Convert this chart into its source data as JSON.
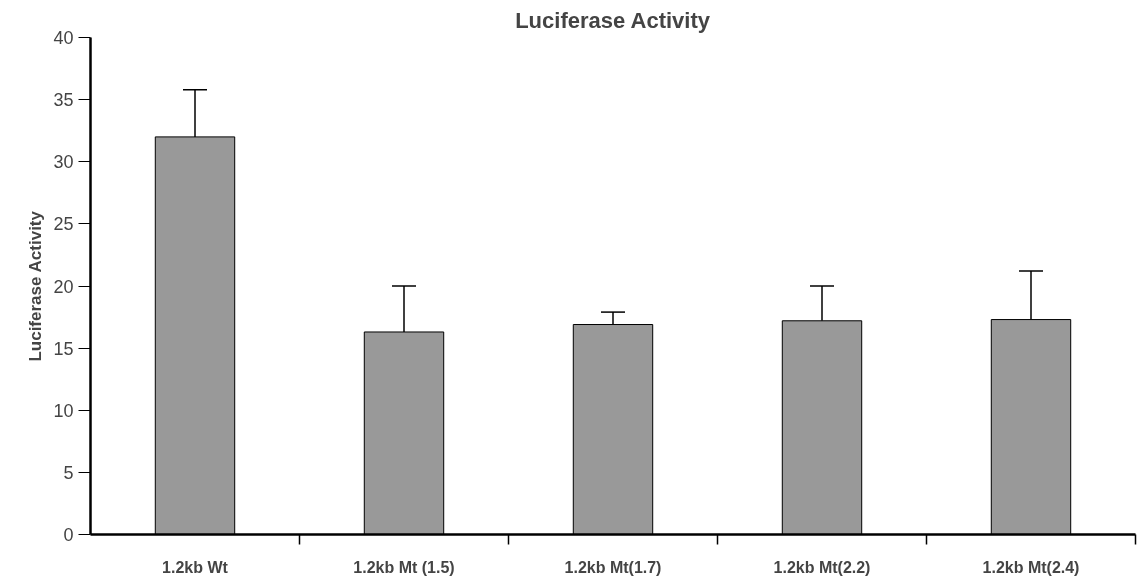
{
  "chart_data": {
    "type": "bar",
    "title": "Luciferase Activity",
    "ylabel": "Luciferase Activity",
    "categories": [
      "1.2kb Wt",
      "1.2kb Mt (1.5)",
      "1.2kb Mt(1.7)",
      "1.2kb Mt(2.2)",
      "1.2kb Mt(2.4)"
    ],
    "values": [
      32.0,
      16.3,
      16.9,
      17.2,
      17.3
    ],
    "errors": [
      [
        32.0,
        35.8
      ],
      [
        16.3,
        20.0
      ],
      [
        16.9,
        17.9
      ],
      [
        17.2,
        20.0
      ],
      [
        17.3,
        21.2
      ]
    ],
    "color": "#999999",
    "ylim": [
      0,
      40
    ],
    "yticks": [
      0,
      5,
      10,
      15,
      20,
      25,
      30,
      35,
      40
    ],
    "grid": false
  }
}
